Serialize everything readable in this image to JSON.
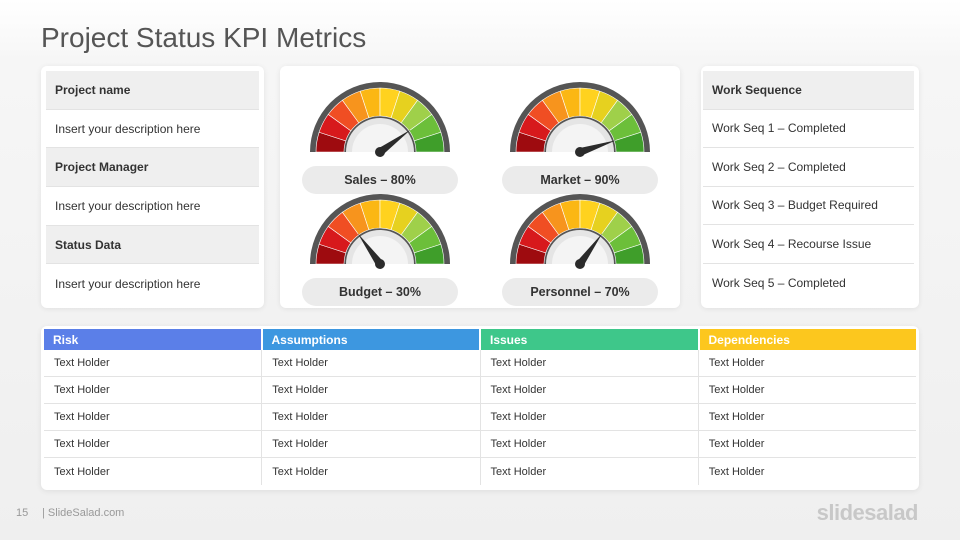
{
  "slide": {
    "title": "Project Status KPI Metrics",
    "page_number": "15",
    "site": "| SlideSalad.com",
    "brand": "slidesalad"
  },
  "info": [
    {
      "heading": "Project name",
      "desc": "Insert your description here"
    },
    {
      "heading": "Project Manager",
      "desc": "Insert your description here"
    },
    {
      "heading": "Status Data",
      "desc": "Insert your description here"
    }
  ],
  "gauges": [
    {
      "label": "Sales  – 80%",
      "percent": 80
    },
    {
      "label": "Market  – 90%",
      "percent": 90
    },
    {
      "label": "Budget  – 30%",
      "percent": 30
    },
    {
      "label": "Personnel  – 70%",
      "percent": 70
    }
  ],
  "gauge_colors": [
    "#9e0b0f",
    "#d7191c",
    "#f04e23",
    "#f7941d",
    "#fbb714",
    "#ffd21f",
    "#e6d11f",
    "#9fd04a",
    "#6cbf3a",
    "#3f9e2a"
  ],
  "work_sequence": {
    "heading": "Work Sequence",
    "items": [
      "Work Seq 1 – Completed",
      "Work Seq 2 – Completed",
      "Work Seq 3 – Budget Required",
      "Work Seq 4 – Recourse Issue",
      "Work Seq 5 – Completed"
    ]
  },
  "table": {
    "columns": [
      {
        "label": "Risk",
        "color": "#5b7fe8"
      },
      {
        "label": "Assumptions",
        "color": "#3d97e0"
      },
      {
        "label": "Issues",
        "color": "#3ec78a"
      },
      {
        "label": "Dependencies",
        "color": "#fcc71e"
      }
    ],
    "rows": [
      [
        "Text Holder",
        "Text Holder",
        "Text Holder",
        "Text Holder"
      ],
      [
        "Text Holder",
        "Text Holder",
        "Text Holder",
        "Text Holder"
      ],
      [
        "Text Holder",
        "Text Holder",
        "Text Holder",
        "Text Holder"
      ],
      [
        "Text Holder",
        "Text Holder",
        "Text Holder",
        "Text Holder"
      ],
      [
        "Text Holder",
        "Text Holder",
        "Text Holder",
        "Text Holder"
      ]
    ]
  }
}
